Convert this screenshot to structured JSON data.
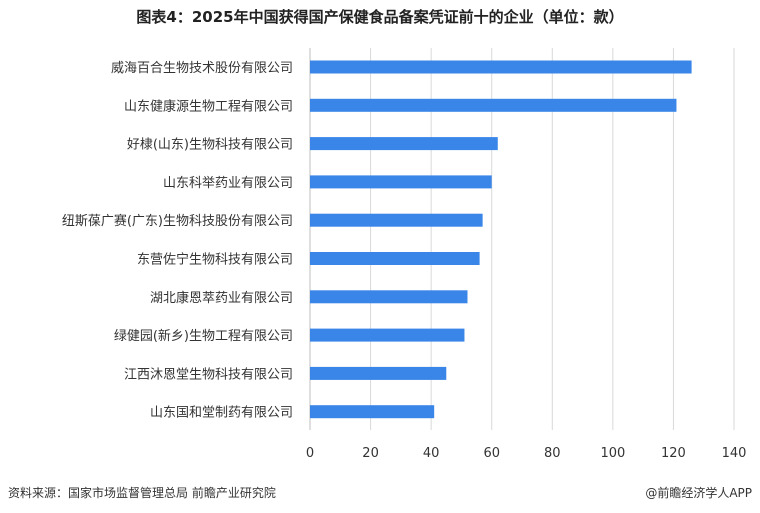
{
  "title": "图表4：2025年中国获得国产保健食品备案凭证前十的企业（单位：款）",
  "footer": {
    "source": "资料来源：国家市场监督管理总局  前瞻产业研究院",
    "brand": "@前瞻经济学人APP"
  },
  "colors": {
    "bar": "#3a86e8",
    "grid": "#d9d9d9",
    "axis": "#bfbfbf"
  },
  "chart_data": {
    "type": "bar",
    "orientation": "horizontal",
    "categories": [
      "威海百合生物技术股份有限公司",
      "山东健康源生物工程有限公司",
      "好棣(山东)生物科技有限公司",
      "山东科举药业有限公司",
      "纽斯葆广赛(广东)生物科技股份有限公司",
      "东营佐宁生物科技有限公司",
      "湖北康恩萃药业有限公司",
      "绿健园(新乡)生物工程有限公司",
      "江西沐恩堂生物科技有限公司",
      "山东国和堂制药有限公司"
    ],
    "values": [
      126,
      121,
      62,
      60,
      57,
      56,
      52,
      51,
      45,
      41
    ],
    "xlim": [
      0,
      140
    ],
    "xticks": [
      0,
      20,
      40,
      60,
      80,
      100,
      120,
      140
    ],
    "grid": true,
    "legend": "none"
  }
}
